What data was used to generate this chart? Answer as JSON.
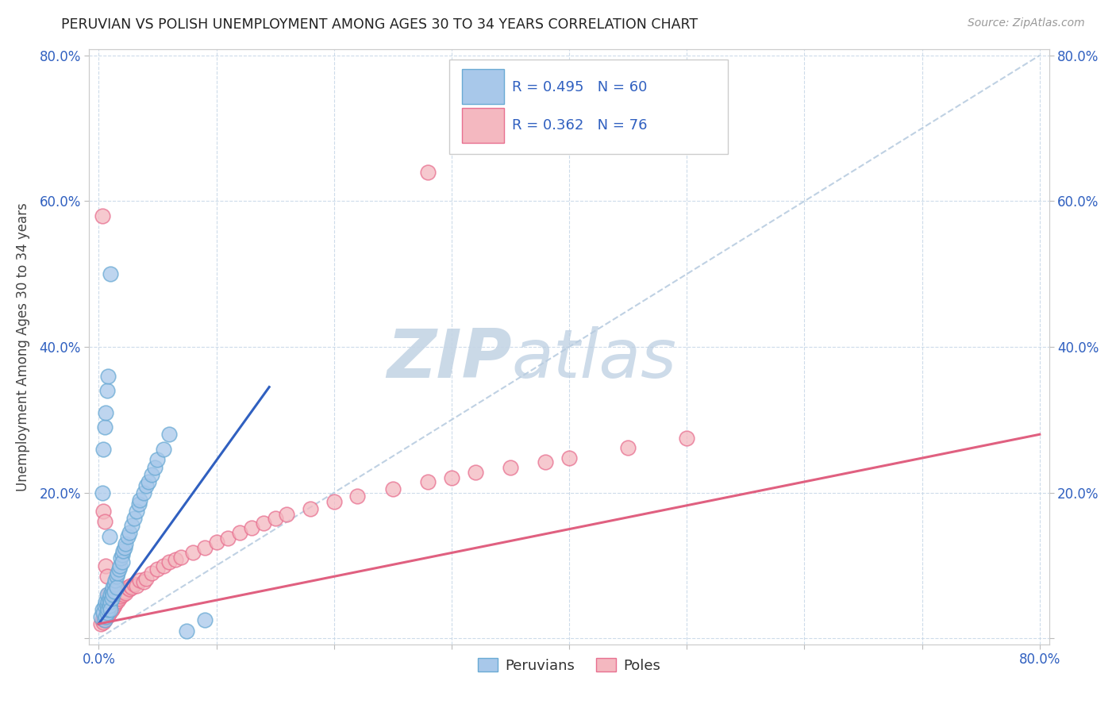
{
  "title": "PERUVIAN VS POLISH UNEMPLOYMENT AMONG AGES 30 TO 34 YEARS CORRELATION CHART",
  "source": "Source: ZipAtlas.com",
  "ylabel": "Unemployment Among Ages 30 to 34 years",
  "xlim": [
    0.0,
    0.8
  ],
  "ylim": [
    0.0,
    0.8
  ],
  "xtick_positions": [
    0.0,
    0.1,
    0.2,
    0.3,
    0.4,
    0.5,
    0.6,
    0.7,
    0.8
  ],
  "xtick_labels": [
    "0.0%",
    "",
    "",
    "",
    "",
    "",
    "",
    "",
    "80.0%"
  ],
  "ytick_positions": [
    0.0,
    0.2,
    0.4,
    0.6,
    0.8
  ],
  "ytick_labels_left": [
    "",
    "20.0%",
    "40.0%",
    "60.0%",
    "80.0%"
  ],
  "ytick_labels_right": [
    "",
    "20.0%",
    "40.0%",
    "60.0%",
    "80.0%"
  ],
  "peruvian_color": "#a8c8ea",
  "polish_color": "#f4b8c0",
  "peruvian_edge": "#6aaad4",
  "polish_edge": "#e87090",
  "peruvian_line_color": "#3060c0",
  "polish_line_color": "#e06080",
  "diag_line_color": "#b8cce0",
  "label_color": "#3060c0",
  "peruvian_R": 0.495,
  "peruvian_N": 60,
  "polish_R": 0.362,
  "polish_N": 76,
  "watermark_color": "#ccd8e8",
  "peru_line_x0": 0.0,
  "peru_line_y0": 0.02,
  "peru_line_x1": 0.145,
  "peru_line_y1": 0.345,
  "pol_line_x0": 0.0,
  "pol_line_y0": 0.02,
  "pol_line_x1": 0.8,
  "pol_line_y1": 0.28,
  "peru_x": [
    0.002,
    0.003,
    0.004,
    0.005,
    0.005,
    0.006,
    0.006,
    0.007,
    0.007,
    0.007,
    0.008,
    0.008,
    0.009,
    0.009,
    0.01,
    0.01,
    0.01,
    0.011,
    0.011,
    0.012,
    0.012,
    0.013,
    0.013,
    0.014,
    0.015,
    0.015,
    0.016,
    0.017,
    0.018,
    0.019,
    0.02,
    0.02,
    0.021,
    0.022,
    0.023,
    0.025,
    0.026,
    0.028,
    0.03,
    0.032,
    0.034,
    0.035,
    0.038,
    0.04,
    0.042,
    0.045,
    0.048,
    0.05,
    0.055,
    0.06,
    0.003,
    0.004,
    0.005,
    0.006,
    0.007,
    0.008,
    0.009,
    0.01,
    0.075,
    0.09
  ],
  "peru_y": [
    0.03,
    0.04,
    0.035,
    0.025,
    0.045,
    0.05,
    0.03,
    0.06,
    0.045,
    0.035,
    0.05,
    0.04,
    0.055,
    0.045,
    0.06,
    0.05,
    0.04,
    0.065,
    0.055,
    0.07,
    0.06,
    0.075,
    0.065,
    0.08,
    0.085,
    0.07,
    0.09,
    0.095,
    0.1,
    0.11,
    0.115,
    0.105,
    0.12,
    0.125,
    0.13,
    0.14,
    0.145,
    0.155,
    0.165,
    0.175,
    0.185,
    0.19,
    0.2,
    0.21,
    0.215,
    0.225,
    0.235,
    0.245,
    0.26,
    0.28,
    0.2,
    0.26,
    0.29,
    0.31,
    0.34,
    0.36,
    0.14,
    0.5,
    0.01,
    0.025
  ],
  "pol_x": [
    0.002,
    0.003,
    0.004,
    0.004,
    0.005,
    0.005,
    0.006,
    0.006,
    0.007,
    0.007,
    0.008,
    0.008,
    0.009,
    0.009,
    0.01,
    0.01,
    0.011,
    0.011,
    0.012,
    0.012,
    0.013,
    0.013,
    0.014,
    0.015,
    0.016,
    0.016,
    0.017,
    0.018,
    0.019,
    0.02,
    0.021,
    0.022,
    0.023,
    0.025,
    0.026,
    0.027,
    0.028,
    0.03,
    0.032,
    0.035,
    0.038,
    0.04,
    0.045,
    0.05,
    0.055,
    0.06,
    0.065,
    0.07,
    0.08,
    0.09,
    0.1,
    0.11,
    0.12,
    0.13,
    0.14,
    0.15,
    0.16,
    0.18,
    0.2,
    0.22,
    0.25,
    0.28,
    0.3,
    0.32,
    0.35,
    0.38,
    0.4,
    0.45,
    0.5,
    0.28,
    0.003,
    0.004,
    0.005,
    0.006,
    0.007,
    0.008
  ],
  "pol_y": [
    0.02,
    0.025,
    0.022,
    0.028,
    0.025,
    0.03,
    0.028,
    0.032,
    0.03,
    0.035,
    0.032,
    0.038,
    0.035,
    0.04,
    0.038,
    0.042,
    0.04,
    0.045,
    0.042,
    0.048,
    0.045,
    0.05,
    0.048,
    0.055,
    0.052,
    0.058,
    0.055,
    0.06,
    0.058,
    0.062,
    0.06,
    0.065,
    0.062,
    0.07,
    0.068,
    0.072,
    0.07,
    0.075,
    0.072,
    0.08,
    0.078,
    0.082,
    0.09,
    0.095,
    0.1,
    0.105,
    0.108,
    0.112,
    0.118,
    0.125,
    0.132,
    0.138,
    0.145,
    0.152,
    0.158,
    0.165,
    0.17,
    0.178,
    0.188,
    0.195,
    0.205,
    0.215,
    0.22,
    0.228,
    0.235,
    0.242,
    0.248,
    0.262,
    0.275,
    0.64,
    0.58,
    0.175,
    0.16,
    0.1,
    0.085,
    0.06
  ]
}
